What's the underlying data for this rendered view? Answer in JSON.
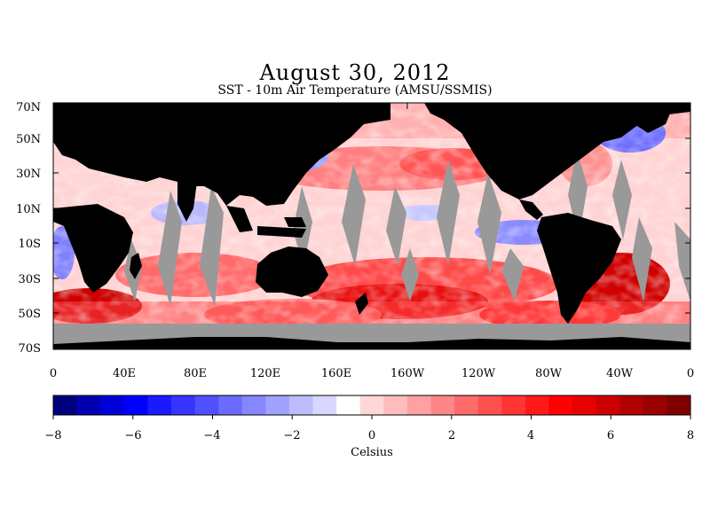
{
  "title": "August 30, 2012",
  "subtitle": "SST - 10m Air Temperature (AMSU/SSMIS)",
  "lat_labels": [
    "70N",
    "50N",
    "30N",
    "10N",
    "10S",
    "30S",
    "50S",
    "70S"
  ],
  "lon_labels": [
    "0",
    "40E",
    "80E",
    "120E",
    "160E",
    "160W",
    "120W",
    "80W",
    "40W",
    "0"
  ],
  "colorbar": {
    "tick_labels": [
      "−8",
      "−6",
      "−4",
      "−2",
      "0",
      "2",
      "4",
      "6",
      "8"
    ],
    "unit_label": "Celsius",
    "range": [
      -8,
      8
    ],
    "colors": [
      "#00007f",
      "#0000b2",
      "#0000d9",
      "#0000ff",
      "#1a1aff",
      "#3535ff",
      "#5050ff",
      "#6b6bff",
      "#8686ff",
      "#a1a1ff",
      "#bcbcff",
      "#d7d7ff",
      "#ffffff",
      "#ffd7d7",
      "#ffbcbc",
      "#ffa1a1",
      "#ff8686",
      "#ff6b6b",
      "#ff5050",
      "#ff3535",
      "#ff1a1a",
      "#ff0000",
      "#e60000",
      "#cc0000",
      "#b20000",
      "#990000",
      "#800000"
    ]
  },
  "colors": {
    "land": "#000000",
    "missing": "#999999",
    "background": "#ffffff"
  }
}
